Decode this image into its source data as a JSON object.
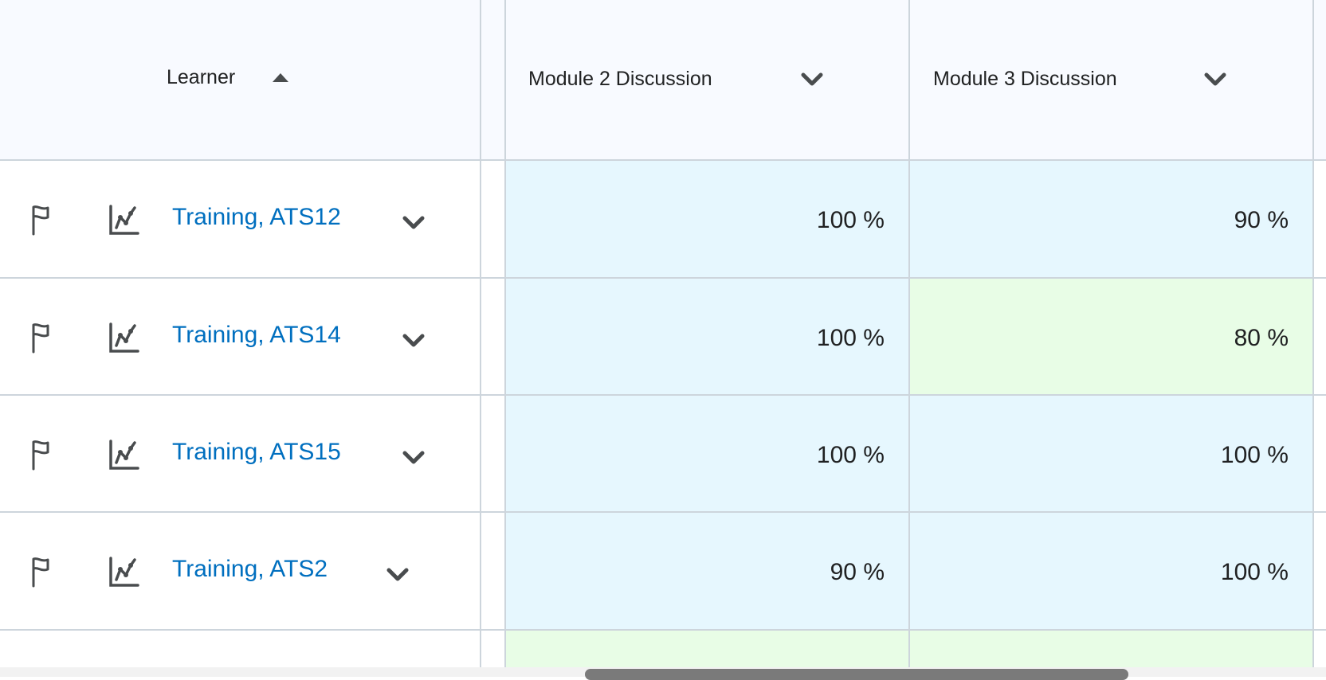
{
  "header": {
    "learner_label": "Learner",
    "learner_sort": "ascending",
    "columns": [
      {
        "label": "Module 2 Discussion"
      },
      {
        "label": "Module 3 Discussion"
      }
    ]
  },
  "rows": [
    {
      "name": "Training, ATS12",
      "grades": [
        "100 %",
        "90 %"
      ],
      "colors": [
        "#e6f7fe",
        "#e6f7fe"
      ]
    },
    {
      "name": "Training, ATS14",
      "grades": [
        "100 %",
        "80 %"
      ],
      "colors": [
        "#e6f7fe",
        "#e8fde6"
      ]
    },
    {
      "name": "Training, ATS15",
      "grades": [
        "100 %",
        "100 %"
      ],
      "colors": [
        "#e6f7fe",
        "#e6f7fe"
      ]
    },
    {
      "name": "Training, ATS2",
      "grades": [
        "90 %",
        "100 %"
      ],
      "colors": [
        "#e6f7fe",
        "#e6f7fe"
      ]
    },
    {
      "name": "",
      "grades": [
        "",
        ""
      ],
      "colors": [
        "#e8fde6",
        "#e8fde6"
      ]
    }
  ],
  "colors": {
    "link": "#006fbf",
    "border": "#cdd5dc",
    "header_bg": "#f8faff"
  }
}
